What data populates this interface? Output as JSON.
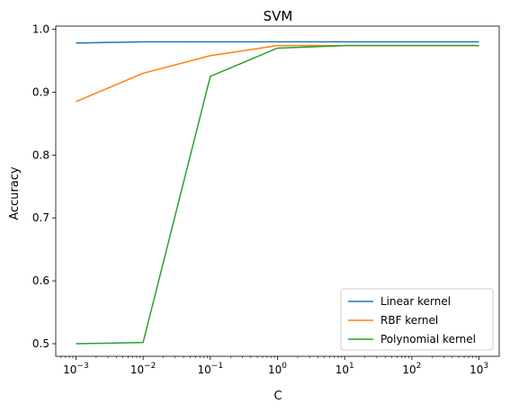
{
  "chart_data": {
    "type": "line",
    "title": "SVM",
    "xlabel": "C",
    "ylabel": "Accuracy",
    "xscale": "log",
    "x": [
      0.001,
      0.01,
      0.1,
      1,
      10,
      100,
      1000
    ],
    "xticks": [
      {
        "base": "10",
        "exp": "−3"
      },
      {
        "base": "10",
        "exp": "−2"
      },
      {
        "base": "10",
        "exp": "−1"
      },
      {
        "base": "10",
        "exp": "0"
      },
      {
        "base": "10",
        "exp": "1"
      },
      {
        "base": "10",
        "exp": "2"
      },
      {
        "base": "10",
        "exp": "3"
      }
    ],
    "yticks": [
      "0.5",
      "0.6",
      "0.7",
      "0.8",
      "0.9",
      "1.0"
    ],
    "ylim": [
      0.48,
      1.005
    ],
    "xlim_log10": [
      -3.3,
      3.3
    ],
    "series": [
      {
        "name": "Linear kernel",
        "color": "#1f77b4",
        "values": [
          0.978,
          0.98,
          0.98,
          0.98,
          0.98,
          0.98,
          0.98
        ]
      },
      {
        "name": "RBF kernel",
        "color": "#ff7f0e",
        "values": [
          0.885,
          0.93,
          0.958,
          0.974,
          0.974,
          0.974,
          0.974
        ]
      },
      {
        "name": "Polynomial kernel",
        "color": "#2ca02c",
        "values": [
          0.5,
          0.502,
          0.925,
          0.97,
          0.974,
          0.974,
          0.974
        ]
      }
    ],
    "legend_position": "lower-right",
    "grid": false
  }
}
